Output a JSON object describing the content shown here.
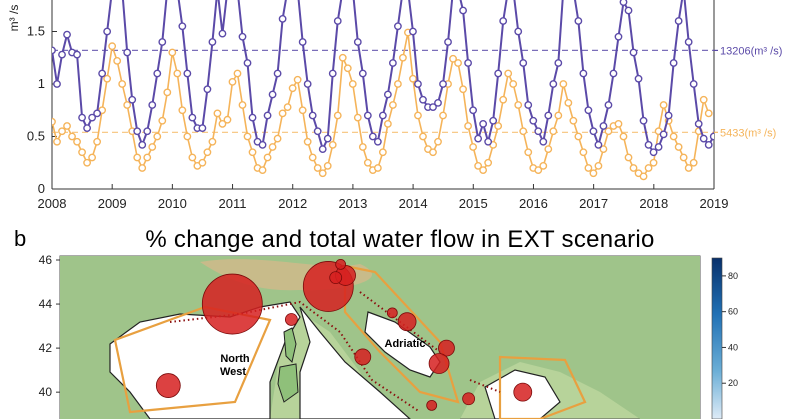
{
  "chart_data": [
    {
      "type": "line",
      "title": "",
      "xlabel": "",
      "ylabel": "m³ /s",
      "x_range": [
        2008,
        2019
      ],
      "ylim": [
        0,
        1.8
      ],
      "x_ticks": [
        "2008",
        "2009",
        "2010",
        "2011",
        "2012",
        "2013",
        "2014",
        "2015",
        "2016",
        "2017",
        "2018",
        "2019"
      ],
      "y_ticks": [
        "0",
        "0.5",
        "1",
        "1.5"
      ],
      "grid": false,
      "legend": "none",
      "colors": {
        "purple": "#5b4aa8",
        "orange": "#f5b45a"
      },
      "annotations": [
        {
          "text": "13206(m³ /s)",
          "y": 1.32,
          "color": "#5b4aa8"
        },
        {
          "text": "5433(m³ /s)",
          "y": 0.54,
          "color": "#f5b45a"
        }
      ],
      "series": [
        {
          "color": "#5b4aa8",
          "x_start": 2008,
          "step": 0.0833,
          "values": [
            1.32,
            1.0,
            1.28,
            1.47,
            1.3,
            1.28,
            0.68,
            0.58,
            0.68,
            0.72,
            1.1,
            1.5,
            1.9,
            1.9,
            1.9,
            1.3,
            0.85,
            0.55,
            0.42,
            0.55,
            0.8,
            1.1,
            1.4,
            1.9,
            1.9,
            1.9,
            1.55,
            1.1,
            0.68,
            0.58,
            0.58,
            0.95,
            1.4,
            1.9,
            1.48,
            1.9,
            1.9,
            1.9,
            1.45,
            1.2,
            0.68,
            0.45,
            0.42,
            0.7,
            0.9,
            1.1,
            1.62,
            1.9,
            1.9,
            1.9,
            1.4,
            1.0,
            0.7,
            0.55,
            0.38,
            0.48,
            1.1,
            1.6,
            1.9,
            1.9,
            1.9,
            1.4,
            1.1,
            0.7,
            0.5,
            0.45,
            0.7,
            0.9,
            1.2,
            1.55,
            1.9,
            1.9,
            1.5,
            1.0,
            0.85,
            0.78,
            0.78,
            0.82,
            1.0,
            1.4,
            1.9,
            1.9,
            1.7,
            1.2,
            0.75,
            0.48,
            0.62,
            0.45,
            0.65,
            1.1,
            1.6,
            1.9,
            1.9,
            1.5,
            1.2,
            0.8,
            0.65,
            0.55,
            0.45,
            0.7,
            1.0,
            1.2,
            1.9,
            1.9,
            1.9,
            1.6,
            1.1,
            0.75,
            0.55,
            0.42,
            0.6,
            0.8,
            1.1,
            1.45,
            1.78,
            1.7,
            1.3,
            1.05,
            0.65,
            0.42,
            0.35,
            0.4,
            0.52,
            0.7,
            1.2,
            1.6,
            1.9,
            1.4,
            1.0,
            0.62,
            0.48,
            0.42,
            0.5,
            0.8,
            1.87
          ]
        },
        {
          "color": "#f5b45a",
          "x_start": 2008,
          "step": 0.0833,
          "values": [
            0.64,
            0.45,
            0.55,
            0.6,
            0.5,
            0.45,
            0.35,
            0.25,
            0.3,
            0.45,
            0.75,
            1.05,
            1.36,
            1.22,
            1.0,
            0.8,
            0.55,
            0.3,
            0.2,
            0.3,
            0.4,
            0.5,
            0.65,
            0.92,
            1.3,
            1.1,
            0.75,
            0.5,
            0.3,
            0.22,
            0.25,
            0.35,
            0.45,
            0.72,
            0.62,
            0.66,
            1.02,
            1.1,
            0.8,
            0.5,
            0.35,
            0.2,
            0.18,
            0.3,
            0.4,
            0.48,
            0.72,
            0.78,
            0.96,
            1.04,
            0.75,
            0.45,
            0.3,
            0.2,
            0.15,
            0.22,
            0.42,
            0.7,
            1.25,
            1.15,
            1.0,
            0.68,
            0.4,
            0.25,
            0.18,
            0.2,
            0.35,
            0.62,
            0.8,
            1.0,
            1.25,
            1.49,
            1.05,
            0.7,
            0.5,
            0.38,
            0.35,
            0.45,
            0.7,
            1.0,
            1.24,
            1.2,
            0.95,
            0.6,
            0.4,
            0.22,
            0.18,
            0.25,
            0.42,
            0.6,
            0.85,
            1.1,
            1.0,
            0.8,
            0.55,
            0.35,
            0.2,
            0.18,
            0.22,
            0.38,
            0.55,
            0.7,
            1.0,
            0.82,
            0.65,
            0.5,
            0.35,
            0.2,
            0.15,
            0.22,
            0.38,
            0.55,
            0.6,
            0.62,
            0.5,
            0.3,
            0.2,
            0.15,
            0.12,
            0.2,
            0.25,
            0.55,
            0.8,
            0.65,
            0.5,
            0.4,
            0.3,
            0.2,
            0.25,
            0.55,
            0.85,
            0.72
          ]
        }
      ]
    },
    {
      "type": "scatter",
      "panel_label": "b",
      "title": "% change and total water flow in EXT scenario",
      "y_ticks": [
        "46",
        "44",
        "42",
        "40"
      ],
      "colorbar_ticks": [
        "80",
        "60",
        "40",
        "20"
      ],
      "region_labels": [
        "North West",
        "Adriatic"
      ],
      "colors": {
        "bubble": "#d62020",
        "land": "#a8c98a",
        "highland": "#c9b07a",
        "sea": "#ffffff",
        "border": "#e8a040"
      },
      "bubbles": [
        {
          "lon": 10.0,
          "lat": 44.0,
          "size": 30
        },
        {
          "lon": 13.9,
          "lat": 44.8,
          "size": 25
        },
        {
          "lon": 14.6,
          "lat": 45.3,
          "size": 10
        },
        {
          "lon": 14.4,
          "lat": 45.8,
          "size": 5
        },
        {
          "lon": 14.2,
          "lat": 45.2,
          "size": 6
        },
        {
          "lon": 17.1,
          "lat": 43.2,
          "size": 9
        },
        {
          "lon": 16.5,
          "lat": 43.6,
          "size": 5
        },
        {
          "lon": 18.7,
          "lat": 42.0,
          "size": 8
        },
        {
          "lon": 18.4,
          "lat": 41.3,
          "size": 10
        },
        {
          "lon": 15.3,
          "lat": 41.6,
          "size": 8
        },
        {
          "lon": 7.4,
          "lat": 40.3,
          "size": 12
        },
        {
          "lon": 12.4,
          "lat": 43.3,
          "size": 6
        },
        {
          "lon": 21.8,
          "lat": 40.0,
          "size": 9
        },
        {
          "lon": 19.6,
          "lat": 39.7,
          "size": 6
        },
        {
          "lon": 18.1,
          "lat": 39.4,
          "size": 5
        }
      ]
    }
  ]
}
